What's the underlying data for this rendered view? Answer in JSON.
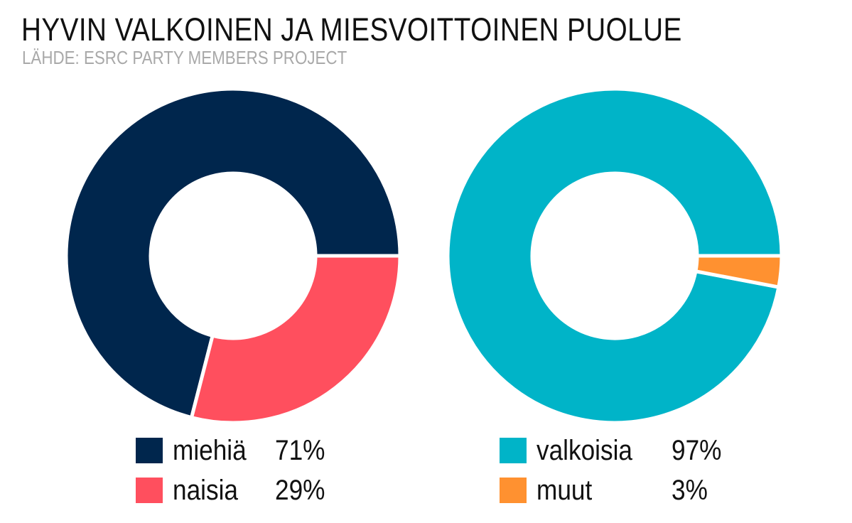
{
  "title": "HYVIN VALKOINEN JA MIESVOITTOINEN PUOLUE",
  "subtitle": "LÄHDE: ESRC PARTY MEMBERS PROJECT",
  "chart_data": [
    {
      "type": "pie",
      "categories": [
        "miehiä",
        "naisia"
      ],
      "values": [
        71,
        29
      ],
      "value_labels": [
        "71%",
        "29%"
      ],
      "colors": [
        "#00264d",
        "#ff4f5e"
      ],
      "legend_position": "bottom"
    },
    {
      "type": "pie",
      "categories": [
        "valkoisia",
        "muut"
      ],
      "values": [
        97,
        3
      ],
      "value_labels": [
        "97%",
        "3%"
      ],
      "colors": [
        "#00b4c8",
        "#ff9130"
      ],
      "legend_position": "bottom"
    }
  ]
}
